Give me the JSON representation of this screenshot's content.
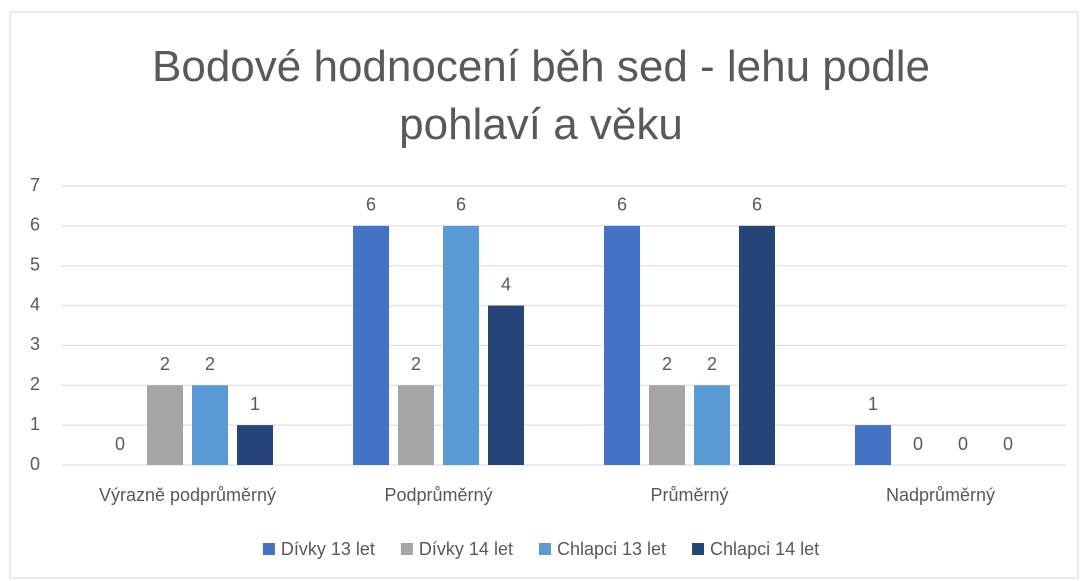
{
  "chart_data": {
    "type": "bar",
    "title": "Bodové hodnocení běh sed - lehu podle pohlaví a věku",
    "categories": [
      "Výrazně podprůměrný",
      "Podprůměrný",
      "Průměrný",
      "Nadprůměrný"
    ],
    "series": [
      {
        "name": "Dívky 13 let",
        "color": "#4472c4",
        "values": [
          0,
          6,
          6,
          1
        ]
      },
      {
        "name": "Dívky 14 let",
        "color": "#a5a5a5",
        "values": [
          2,
          2,
          2,
          0
        ]
      },
      {
        "name": "Chlapci 13 let",
        "color": "#5b9bd5",
        "values": [
          2,
          6,
          2,
          0
        ]
      },
      {
        "name": "Chlapci 14 let",
        "color": "#264478",
        "values": [
          1,
          4,
          6,
          0
        ]
      }
    ],
    "ylim": [
      0,
      7
    ],
    "yticks": [
      0,
      1,
      2,
      3,
      4,
      5,
      6,
      7
    ],
    "grid": true,
    "legend": "bottom"
  }
}
